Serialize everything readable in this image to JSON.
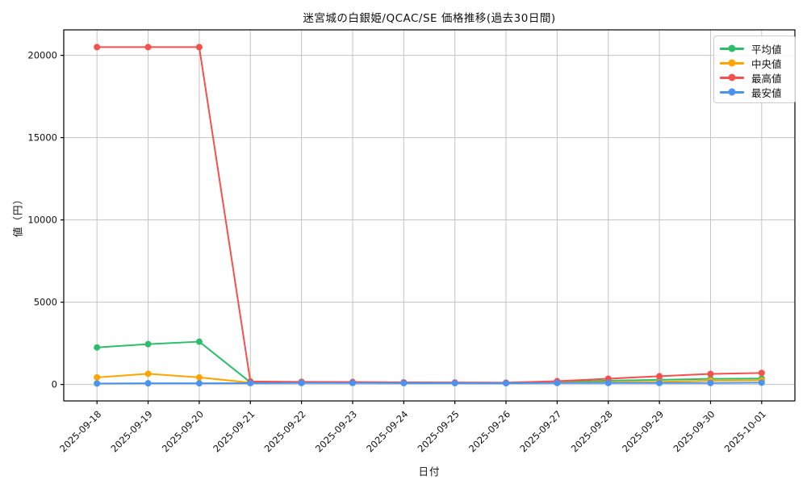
{
  "chart_data": {
    "type": "line",
    "title": "迷宮城の白銀姫/QCAC/SE 価格推移(過去30日間)",
    "xlabel": "日付",
    "ylabel": "値（円）",
    "x": [
      "2025-09-18",
      "2025-09-19",
      "2025-09-20",
      "2025-09-21",
      "2025-09-22",
      "2025-09-23",
      "2025-09-24",
      "2025-09-25",
      "2025-09-26",
      "2025-09-27",
      "2025-09-28",
      "2025-09-29",
      "2025-09-30",
      "2025-10-01"
    ],
    "series": [
      {
        "name": "平均値",
        "color": "#2dbe6c",
        "values": [
          2250,
          2450,
          2600,
          130,
          120,
          110,
          100,
          95,
          90,
          150,
          230,
          280,
          340,
          360
        ]
      },
      {
        "name": "中央値",
        "color": "#ffa500",
        "values": [
          430,
          650,
          430,
          110,
          100,
          100,
          90,
          85,
          80,
          110,
          130,
          160,
          230,
          250
        ]
      },
      {
        "name": "最高値",
        "color": "#f4504d",
        "values": [
          20500,
          20500,
          20500,
          180,
          160,
          150,
          130,
          120,
          110,
          200,
          350,
          500,
          640,
          700
        ]
      },
      {
        "name": "最安値",
        "color": "#4a94f0",
        "values": [
          60,
          70,
          70,
          80,
          90,
          90,
          85,
          80,
          75,
          90,
          90,
          90,
          90,
          110
        ]
      }
    ],
    "yticks": [
      0,
      5000,
      10000,
      15000,
      20000
    ],
    "ylim": [
      -1000,
      21550
    ],
    "grid": true,
    "grid_color": "#c3c3c3",
    "legend_position": "upper right"
  }
}
